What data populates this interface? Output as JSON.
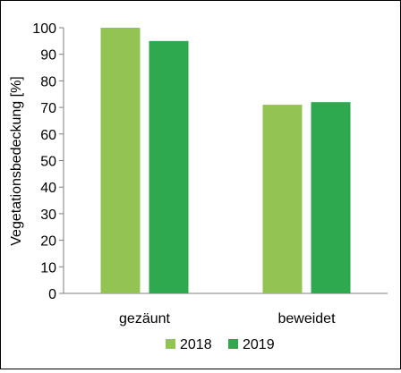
{
  "chart_data": {
    "type": "bar",
    "categories": [
      "gezäunt",
      "beweidet"
    ],
    "series": [
      {
        "name": "2018",
        "values": [
          100,
          71
        ],
        "color": "#92c353"
      },
      {
        "name": "2019",
        "values": [
          95,
          72
        ],
        "color": "#2ea94f"
      }
    ],
    "title": "",
    "xlabel": "",
    "ylabel": "Vegetationsbedeckung [%]",
    "ylim": [
      0,
      100
    ],
    "yticks": [
      0,
      10,
      20,
      30,
      40,
      50,
      60,
      70,
      80,
      90,
      100
    ],
    "grid": false,
    "legend_position": "bottom"
  }
}
